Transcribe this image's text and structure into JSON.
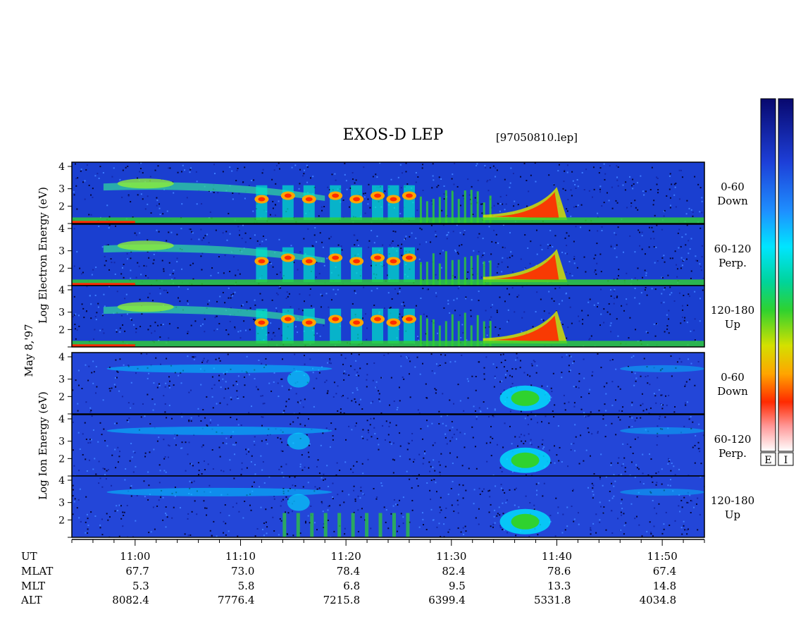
{
  "title": "EXOS-D LEP",
  "filename": "[97050810.lep]",
  "date_label": "May 8,'97",
  "electron_axis_label": "Log Electron Energy (eV)",
  "ion_axis_label": "Log Ion Energy (eV)",
  "colorbar": {
    "labels": [
      "E",
      "I"
    ],
    "colors": [
      "#0a0a8c",
      "#1d3fd8",
      "#1e90ff",
      "#00e5ff",
      "#00d49a",
      "#2fd22f",
      "#d4e000",
      "#ffa500",
      "#ff2a00",
      "#ff9a9a",
      "#ffffff"
    ]
  },
  "chart_data": {
    "type": "heatmap",
    "title": "EXOS-D LEP",
    "xlabel": "UT",
    "x_ticks": [
      "11:00",
      "11:10",
      "11:20",
      "11:30",
      "11:40",
      "11:50"
    ],
    "ephemeris": [
      {
        "name": "UT",
        "values": [
          "11:00",
          "11:10",
          "11:20",
          "11:30",
          "11:40",
          "11:50"
        ]
      },
      {
        "name": "MLAT",
        "values": [
          "67.7",
          "73.0",
          "78.4",
          "82.4",
          "78.6",
          "67.4"
        ]
      },
      {
        "name": "MLT",
        "values": [
          "5.3",
          "5.8",
          "6.8",
          "9.5",
          "13.3",
          "14.8"
        ]
      },
      {
        "name": "ALT",
        "values": [
          "8082.4",
          "7776.4",
          "7215.8",
          "6399.4",
          "5331.8",
          "4034.8"
        ]
      }
    ],
    "x_range_minutes_after_1100": [
      -6,
      54
    ],
    "y_ticks": [
      "1",
      "2",
      "3",
      "4"
    ],
    "ylim": [
      1,
      4
    ],
    "panels": [
      {
        "species": "Electron",
        "pitch_angle": "0-60",
        "direction": "Down"
      },
      {
        "species": "Electron",
        "pitch_angle": "60-120",
        "direction": "Perp."
      },
      {
        "species": "Electron",
        "pitch_angle": "120-180",
        "direction": "Up"
      },
      {
        "species": "Ion",
        "pitch_angle": "0-60",
        "direction": "Down"
      },
      {
        "species": "Ion",
        "pitch_angle": "60-120",
        "direction": "Perp."
      },
      {
        "species": "Ion",
        "pitch_angle": "120-180",
        "direction": "Up"
      }
    ]
  }
}
